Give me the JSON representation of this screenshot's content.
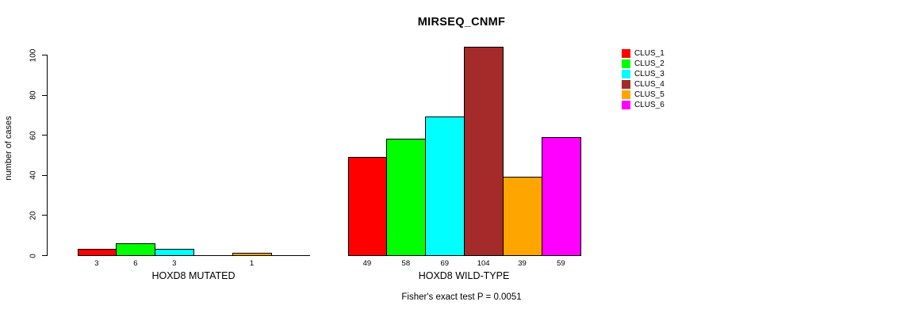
{
  "chart_data": {
    "type": "bar",
    "title": "MIRSEQ_CNMF",
    "ylabel": "number of cases",
    "ylim": [
      0,
      100
    ],
    "yticks": [
      0,
      20,
      40,
      60,
      80,
      100
    ],
    "grid": false,
    "legend_position": "right",
    "series": [
      {
        "name": "CLUS_1",
        "color": "#ff0000"
      },
      {
        "name": "CLUS_2",
        "color": "#00ff00"
      },
      {
        "name": "CLUS_3",
        "color": "#00ffff"
      },
      {
        "name": "CLUS_4",
        "color": "#a52a2a"
      },
      {
        "name": "CLUS_5",
        "color": "#ffa500"
      },
      {
        "name": "CLUS_6",
        "color": "#ff00ff"
      }
    ],
    "groups": [
      {
        "label": "HOXD8 MUTATED",
        "values": [
          3,
          6,
          3,
          0,
          1,
          0
        ]
      },
      {
        "label": "HOXD8 WILD-TYPE",
        "values": [
          49,
          58,
          69,
          104,
          39,
          59
        ]
      }
    ],
    "bar_label_rule": "value shown under bar only when value > 0",
    "annotation": "Fisher's exact test P = 0.0051"
  }
}
